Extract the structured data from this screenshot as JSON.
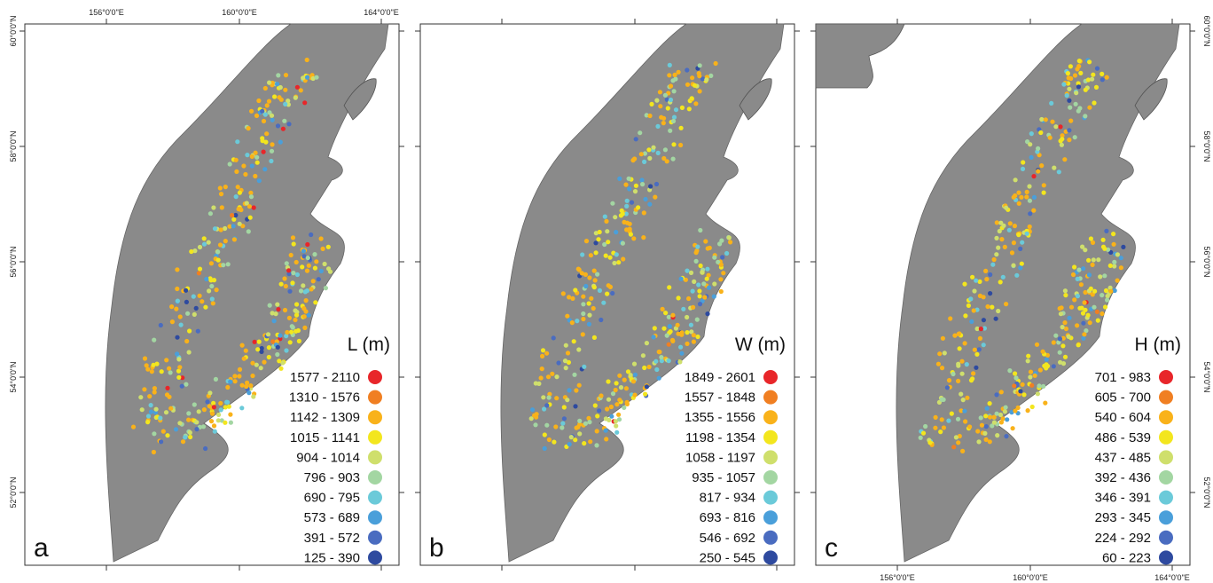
{
  "panels": [
    {
      "letter": "a",
      "legend_title": "L (m)",
      "legend": [
        {
          "label": "1577 - 2110",
          "color": "#e8262a"
        },
        {
          "label": "1310 - 1576",
          "color": "#f07f22"
        },
        {
          "label": "1142 - 1309",
          "color": "#f9b21a"
        },
        {
          "label": "1015 - 1141",
          "color": "#f3e61e"
        },
        {
          "label": "904 - 1014",
          "color": "#cfdf6c"
        },
        {
          "label": "796 - 903",
          "color": "#a3d6a2"
        },
        {
          "label": "690 - 795",
          "color": "#6bcad9"
        },
        {
          "label": "573 - 689",
          "color": "#4a9fda"
        },
        {
          "label": "391 - 572",
          "color": "#4a6cc0"
        },
        {
          "label": "125 - 390",
          "color": "#2e4a9f"
        }
      ],
      "top_labels": [
        "156°0'0\"E",
        "160°0'0\"E",
        "164°0'0\"E"
      ],
      "left_labels": [
        "60°0'0\"N",
        "58°0'0\"N",
        "56°0'0\"N",
        "54°0'0\"N",
        "52°0'0\"N"
      ]
    },
    {
      "letter": "b",
      "legend_title": "W (m)",
      "legend": [
        {
          "label": "1849 - 2601",
          "color": "#e8262a"
        },
        {
          "label": "1557 - 1848",
          "color": "#f07f22"
        },
        {
          "label": "1355 - 1556",
          "color": "#f9b21a"
        },
        {
          "label": "1198 - 1354",
          "color": "#f3e61e"
        },
        {
          "label": "1058 - 1197",
          "color": "#cfdf6c"
        },
        {
          "label": "935 - 1057",
          "color": "#a3d6a2"
        },
        {
          "label": "817 - 934",
          "color": "#6bcad9"
        },
        {
          "label": "693 - 816",
          "color": "#4a9fda"
        },
        {
          "label": "546 - 692",
          "color": "#4a6cc0"
        },
        {
          "label": "250 - 545",
          "color": "#2e4a9f"
        }
      ]
    },
    {
      "letter": "c",
      "legend_title": "H (m)",
      "legend": [
        {
          "label": "701 - 983",
          "color": "#e8262a"
        },
        {
          "label": "605 - 700",
          "color": "#f07f22"
        },
        {
          "label": "540 - 604",
          "color": "#f9b21a"
        },
        {
          "label": "486 - 539",
          "color": "#f3e61e"
        },
        {
          "label": "437 - 485",
          "color": "#cfdf6c"
        },
        {
          "label": "392 - 436",
          "color": "#a3d6a2"
        },
        {
          "label": "346 - 391",
          "color": "#6bcad9"
        },
        {
          "label": "293 - 345",
          "color": "#4a9fda"
        },
        {
          "label": "224 - 292",
          "color": "#4a6cc0"
        },
        {
          "label": "60 - 223",
          "color": "#2e4a9f"
        }
      ],
      "bottom_labels": [
        "156°0'0\"E",
        "160°0'0\"E",
        "164°0'0\"E"
      ],
      "right_labels": [
        "60°0'0\"N",
        "58°0'0\"N",
        "56°0'0\"N",
        "54°0'0\"N",
        "52°0'0\"N"
      ]
    }
  ]
}
